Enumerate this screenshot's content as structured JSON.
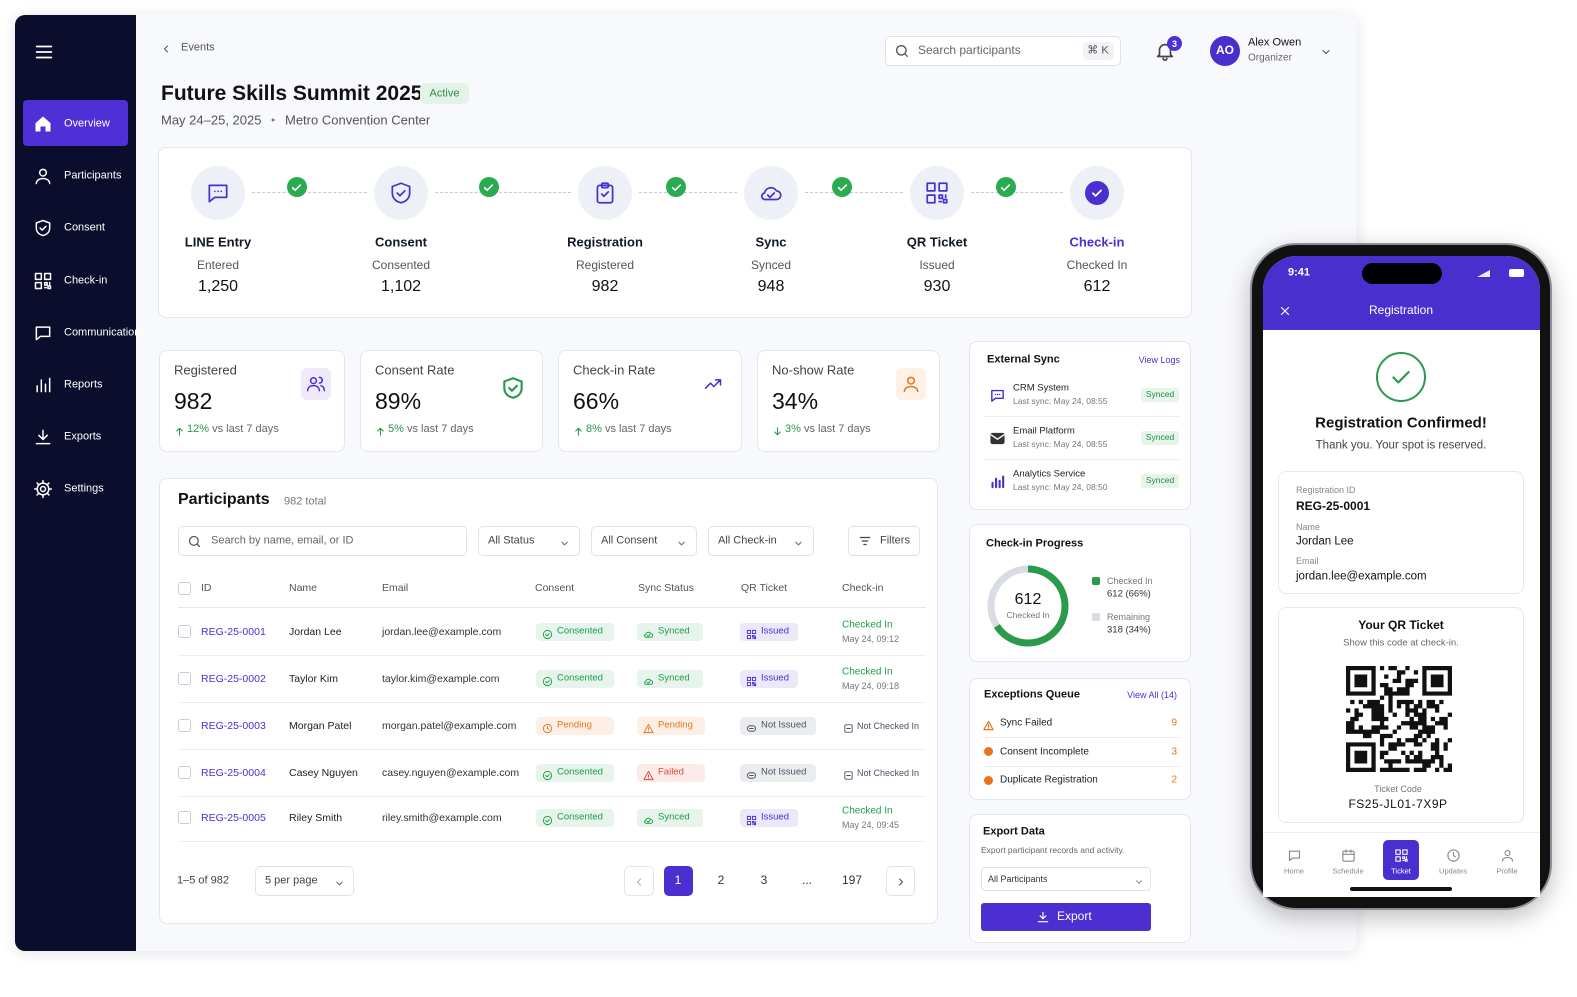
{
  "sidebar": {
    "nav": [
      "Overview",
      "Participants",
      "Consent",
      "Check-in",
      "Communications",
      "Reports",
      "Exports",
      "Settings"
    ]
  },
  "header": {
    "breadcrumb": "Events",
    "search_placeholder": "Search participants",
    "shortcut": "⌘ K",
    "notification_count": "3",
    "user": {
      "initials": "AO",
      "name": "Alex Owen",
      "role": "Organizer"
    }
  },
  "event": {
    "title": "Future Skills Summit 2025",
    "status": "Active",
    "dates": "May 24–25, 2025",
    "separator": "•",
    "venue": "Metro Convention Center"
  },
  "pipeline": [
    {
      "name": "LINE Entry",
      "status": "Entered",
      "count": "1,250",
      "color": "#111827"
    },
    {
      "name": "Consent",
      "status": "Consented",
      "count": "1,102",
      "color": "#111827"
    },
    {
      "name": "Registration",
      "status": "Registered",
      "count": "982",
      "color": "#111827"
    },
    {
      "name": "Sync",
      "status": "Synced",
      "count": "948",
      "color": "#111827"
    },
    {
      "name": "QR Ticket",
      "status": "Issued",
      "count": "930",
      "color": "#111827"
    },
    {
      "name": "Check-in",
      "status": "Checked In",
      "count": "612",
      "color": "#4c2fd1"
    }
  ],
  "stats": [
    {
      "label": "Registered",
      "value": "982",
      "change": "12%",
      "comparison": "vs last 7 days",
      "trend": "up"
    },
    {
      "label": "Consent Rate",
      "value": "89%",
      "change": "5%",
      "comparison": "vs last 7 days",
      "trend": "up"
    },
    {
      "label": "Check-in Rate",
      "value": "66%",
      "change": "8%",
      "comparison": "vs last 7 days",
      "trend": "up"
    },
    {
      "label": "No-show Rate",
      "value": "34%",
      "change": "3%",
      "comparison": "vs last 7 days",
      "trend": "down"
    }
  ],
  "participants": {
    "title": "Participants",
    "total": "982 total",
    "search_placeholder": "Search by name, email, or ID",
    "filters": [
      "All Status",
      "All Consent",
      "All Check-in"
    ],
    "filters_button": "Filters",
    "columns": [
      "ID",
      "Name",
      "Email",
      "Consent",
      "Sync Status",
      "QR Ticket",
      "Check-in"
    ],
    "rows": [
      {
        "id": "REG-25-0001",
        "name": "Jordan Lee",
        "email": "jordan.lee@example.com",
        "consent": "Consented",
        "consent_color": "#1e9e4a",
        "sync": "Synced",
        "sync_color": "#1e9e4a",
        "qr": "Issued",
        "qr_color": "#4c2fd1",
        "checkin": "Checked In",
        "checkin_color": "#1e9e4a",
        "checkin_time": "May 24, 09:12"
      },
      {
        "id": "REG-25-0002",
        "name": "Taylor Kim",
        "email": "taylor.kim@example.com",
        "consent": "Consented",
        "consent_color": "#1e9e4a",
        "sync": "Synced",
        "sync_color": "#1e9e4a",
        "qr": "Issued",
        "qr_color": "#4c2fd1",
        "checkin": "Checked In",
        "checkin_color": "#1e9e4a",
        "checkin_time": "May 24, 09:18"
      },
      {
        "id": "REG-25-0003",
        "name": "Morgan Patel",
        "email": "morgan.patel@example.com",
        "consent": "Pending",
        "consent_color": "#e8731a",
        "sync": "Pending",
        "sync_color": "#e8731a",
        "qr": "Not Issued",
        "qr_color": "#4b5563",
        "checkin": "Not Checked In",
        "checkin_color": "#4b5563"
      },
      {
        "id": "REG-25-0004",
        "name": "Casey Nguyen",
        "email": "casey.nguyen@example.com",
        "consent": "Consented",
        "consent_color": "#1e9e4a",
        "sync": "Failed",
        "sync_color": "#e0483a",
        "qr": "Not Issued",
        "qr_color": "#4b5563",
        "checkin": "Not Checked In",
        "checkin_color": "#4b5563"
      },
      {
        "id": "REG-25-0005",
        "name": "Riley Smith",
        "email": "riley.smith@example.com",
        "consent": "Consented",
        "consent_color": "#1e9e4a",
        "sync": "Synced",
        "sync_color": "#1e9e4a",
        "qr": "Issued",
        "qr_color": "#4c2fd1",
        "checkin": "Checked In",
        "checkin_color": "#1e9e4a",
        "checkin_time": "May 24, 09:45"
      }
    ],
    "pagination": {
      "range": "1–5 of 982",
      "per_page": "5 per page",
      "pages": [
        "1",
        "2",
        "3",
        "...",
        "197"
      ]
    }
  },
  "external_sync": {
    "title": "External Sync",
    "link": "View Logs",
    "items": [
      {
        "name": "CRM System",
        "last_sync": "Last sync: May 24, 08:55",
        "status": "Synced"
      },
      {
        "name": "Email Platform",
        "last_sync": "Last sync: May 24, 08:55",
        "status": "Synced"
      },
      {
        "name": "Analytics Service",
        "last_sync": "Last sync: May 24, 08:50",
        "status": "Synced"
      }
    ]
  },
  "check_in_progress": {
    "title": "Check-in Progress",
    "checked_in": 612,
    "center_label": "Checked In",
    "remaining": 318,
    "legend": [
      {
        "name": "Checked In",
        "value": "612 (66%)",
        "color": "#2a9a4b"
      },
      {
        "name": "Remaining",
        "value": "318 (34%)",
        "color": "#d9dce3"
      }
    ]
  },
  "exceptions": {
    "title": "Exceptions Queue",
    "link": "View All (14)",
    "items": [
      {
        "label": "Sync Failed",
        "count": "9"
      },
      {
        "label": "Consent Incomplete",
        "count": "3"
      },
      {
        "label": "Duplicate Registration",
        "count": "2"
      }
    ]
  },
  "export": {
    "title": "Export Data",
    "description": "Export participant records and activity.",
    "select": "All Participants",
    "button": "Export"
  },
  "phone": {
    "time": "9:41",
    "title": "Registration",
    "heading": "Registration Confirmed!",
    "message": "Thank you. Your spot is reserved.",
    "fields": [
      {
        "label": "Registration ID",
        "value": "REG-25-0001"
      },
      {
        "label": "Name",
        "value": "Jordan Lee"
      },
      {
        "label": "Email",
        "value": "jordan.lee@example.com"
      }
    ],
    "qr_title": "Your QR Ticket",
    "qr_note": "Show this code at check-in.",
    "ticket_code_label": "Ticket Code",
    "ticket_code": "FS25-JL01-7X9P",
    "tabs": [
      "Home",
      "Schedule",
      "Ticket",
      "Updates",
      "Profile"
    ]
  }
}
